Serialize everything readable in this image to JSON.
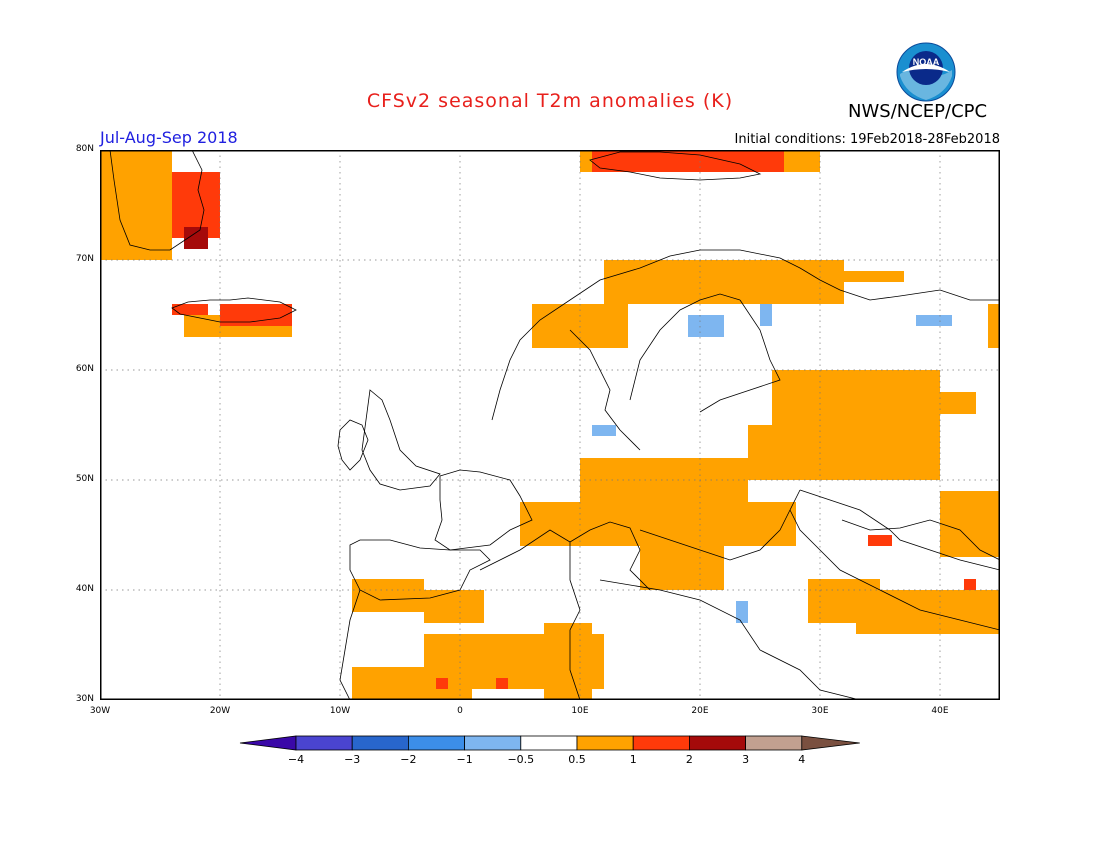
{
  "header": {
    "title": "CFSv2 seasonal T2m anomalies (K)",
    "org": "NWS/NCEP/CPC",
    "season": "Jul-Aug-Sep 2018",
    "initial_conditions": "Initial conditions: 19Feb2018-28Feb2018"
  },
  "logo": {
    "text": "NOAA",
    "icon": "noaa-logo"
  },
  "map": {
    "lon_range": [
      -30,
      45
    ],
    "lat_range": [
      30,
      80
    ],
    "lat_ticks": [
      {
        "value": 30,
        "label": "30N"
      },
      {
        "value": 40,
        "label": "40N"
      },
      {
        "value": 50,
        "label": "50N"
      },
      {
        "value": 60,
        "label": "60N"
      },
      {
        "value": 70,
        "label": "70N"
      },
      {
        "value": 80,
        "label": "80N"
      }
    ],
    "lon_ticks": [
      {
        "value": -30,
        "label": "30W"
      },
      {
        "value": -20,
        "label": "20W"
      },
      {
        "value": -10,
        "label": "10W"
      },
      {
        "value": 0,
        "label": "0"
      },
      {
        "value": 10,
        "label": "10E"
      },
      {
        "value": 20,
        "label": "20E"
      },
      {
        "value": 30,
        "label": "30E"
      },
      {
        "value": 40,
        "label": "40E"
      }
    ],
    "gridlines": "dotted"
  },
  "colorbar": {
    "ticks": [
      "-4",
      "-3",
      "-2",
      "-1",
      "-0.5",
      "0.5",
      "1",
      "2",
      "3",
      "4"
    ],
    "colors": [
      "#3a08a8",
      "#4a44d0",
      "#2866cc",
      "#3c8ee8",
      "#7eb6f0",
      "#ffffff",
      "#ffa200",
      "#ff3a0a",
      "#a50a0a",
      "#c2a090",
      "#7a5040"
    ]
  },
  "anomaly_regions": [
    {
      "cat": "1",
      "lon": [
        -30,
        -24
      ],
      "lat": [
        70,
        80
      ]
    },
    {
      "cat": "2",
      "lon": [
        -24,
        -20
      ],
      "lat": [
        72,
        78
      ]
    },
    {
      "cat": "3",
      "lon": [
        -23,
        -21
      ],
      "lat": [
        71,
        73
      ]
    },
    {
      "cat": "1",
      "lon": [
        -23,
        -14
      ],
      "lat": [
        63,
        65
      ]
    },
    {
      "cat": "2",
      "lon": [
        -20,
        -14
      ],
      "lat": [
        64,
        66
      ]
    },
    {
      "cat": "2",
      "lon": [
        -24,
        -21
      ],
      "lat": [
        65,
        66
      ]
    },
    {
      "cat": "1",
      "lon": [
        10,
        30
      ],
      "lat": [
        78,
        80
      ]
    },
    {
      "cat": "2",
      "lon": [
        11,
        27
      ],
      "lat": [
        78,
        80
      ]
    },
    {
      "cat": "1",
      "lon": [
        6,
        14
      ],
      "lat": [
        62,
        66
      ]
    },
    {
      "cat": "1",
      "lon": [
        12,
        32
      ],
      "lat": [
        66,
        70
      ]
    },
    {
      "cat": "1",
      "lon": [
        32,
        37
      ],
      "lat": [
        68,
        69
      ]
    },
    {
      "cat": "1",
      "lon": [
        44,
        45
      ],
      "lat": [
        62,
        66
      ]
    },
    {
      "cat": "1",
      "lon": [
        26,
        40
      ],
      "lat": [
        54,
        60
      ]
    },
    {
      "cat": "1",
      "lon": [
        38,
        43
      ],
      "lat": [
        56,
        58
      ]
    },
    {
      "cat": "1",
      "lon": [
        24,
        40
      ],
      "lat": [
        50,
        55
      ]
    },
    {
      "cat": "1",
      "lon": [
        40,
        45
      ],
      "lat": [
        43,
        49
      ]
    },
    {
      "cat": "1",
      "lon": [
        12,
        24
      ],
      "lat": [
        47,
        52
      ]
    },
    {
      "cat": "1",
      "lon": [
        5,
        28
      ],
      "lat": [
        44,
        48
      ]
    },
    {
      "cat": "1",
      "lon": [
        15,
        22
      ],
      "lat": [
        40,
        44
      ]
    },
    {
      "cat": "1",
      "lon": [
        29,
        35
      ],
      "lat": [
        37,
        41
      ]
    },
    {
      "cat": "1",
      "lon": [
        33,
        45
      ],
      "lat": [
        36,
        40
      ]
    },
    {
      "cat": "1",
      "lon": [
        -3,
        2
      ],
      "lat": [
        37,
        40
      ]
    },
    {
      "cat": "1",
      "lon": [
        -9,
        -3
      ],
      "lat": [
        38,
        41
      ]
    },
    {
      "cat": "1",
      "lon": [
        -9,
        1
      ],
      "lat": [
        30,
        33
      ]
    },
    {
      "cat": "1",
      "lon": [
        -3,
        12
      ],
      "lat": [
        31,
        36
      ]
    },
    {
      "cat": "1",
      "lon": [
        7,
        11
      ],
      "lat": [
        30,
        37
      ]
    },
    {
      "cat": "1",
      "lon": [
        10,
        14
      ],
      "lat": [
        48,
        52
      ]
    },
    {
      "cat": "2",
      "lon": [
        -2,
        -1
      ],
      "lat": [
        31,
        32
      ]
    },
    {
      "cat": "2",
      "lon": [
        3,
        4
      ],
      "lat": [
        31,
        32
      ]
    },
    {
      "cat": "2",
      "lon": [
        34,
        36
      ],
      "lat": [
        44,
        45
      ]
    },
    {
      "cat": "2",
      "lon": [
        42,
        43
      ],
      "lat": [
        40,
        41
      ]
    },
    {
      "cat": "-0.5",
      "lon": [
        19,
        22
      ],
      "lat": [
        63,
        65
      ]
    },
    {
      "cat": "-0.5",
      "lon": [
        25,
        26
      ],
      "lat": [
        64,
        66
      ]
    },
    {
      "cat": "-0.5",
      "lon": [
        38,
        41
      ],
      "lat": [
        64,
        65
      ]
    },
    {
      "cat": "-0.5",
      "lon": [
        11,
        13
      ],
      "lat": [
        54,
        55
      ]
    },
    {
      "cat": "-0.5",
      "lon": [
        23,
        24
      ],
      "lat": [
        37,
        39
      ]
    }
  ]
}
